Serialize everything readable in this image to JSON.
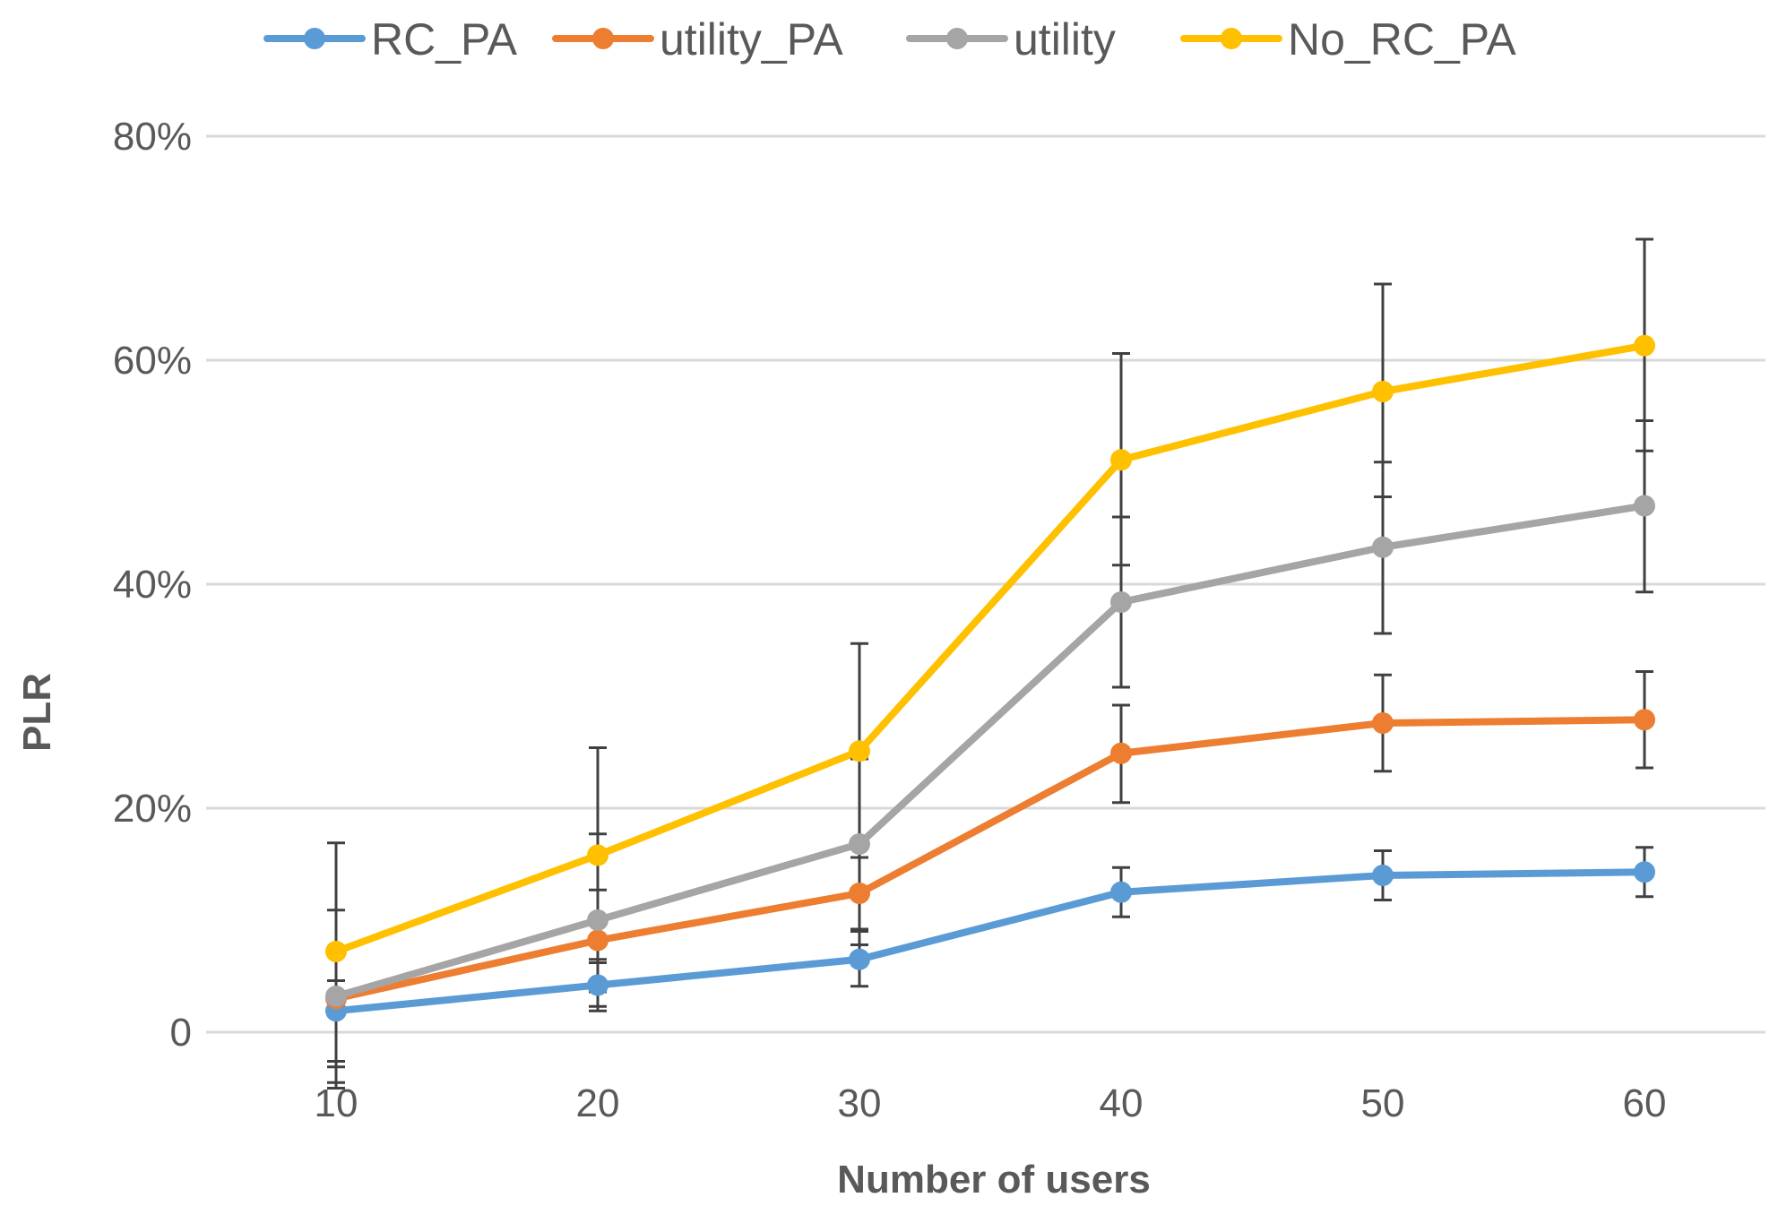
{
  "chart_data": {
    "type": "line",
    "title": "",
    "xlabel": "Number of users",
    "ylabel": "PLR",
    "x": [
      10,
      20,
      30,
      40,
      50,
      60
    ],
    "x_tick_labels": [
      "10",
      "20",
      "30",
      "40",
      "50",
      "60"
    ],
    "ylim": [
      0,
      0.8
    ],
    "y_ticks": [
      0,
      0.2,
      0.4,
      0.6,
      0.8
    ],
    "y_tick_labels": [
      "0",
      "20%",
      "40%",
      "60%",
      "80%"
    ],
    "grid": true,
    "legend_position": "top",
    "series": [
      {
        "name": "RC_PA",
        "color": "#5B9BD5",
        "values": [
          0.019,
          0.042,
          0.065,
          0.125,
          0.14,
          0.143
        ],
        "err_low": [
          0.069,
          0.023,
          0.024,
          0.022,
          0.022,
          0.022
        ],
        "err_high": [
          0.027,
          0.023,
          0.025,
          0.022,
          0.022,
          0.022
        ]
      },
      {
        "name": "utility_PA",
        "color": "#ED7D31",
        "values": [
          0.03,
          0.082,
          0.124,
          0.249,
          0.276,
          0.279
        ],
        "err_low": [
          0.061,
          0.046,
          0.046,
          0.044,
          0.043,
          0.043
        ],
        "err_high": [
          0.046,
          0.045,
          0.045,
          0.043,
          0.043,
          0.043
        ]
      },
      {
        "name": "utility",
        "color": "#A5A5A5",
        "values": [
          0.032,
          0.1,
          0.168,
          0.384,
          0.433,
          0.47
        ],
        "err_low": [
          0.077,
          0.077,
          0.076,
          0.076,
          0.077,
          0.077
        ],
        "err_high": [
          0.077,
          0.077,
          0.076,
          0.076,
          0.076,
          0.076
        ]
      },
      {
        "name": "No_RC_PA",
        "color": "#FFC000",
        "values": [
          0.072,
          0.158,
          0.251,
          0.511,
          0.572,
          0.613
        ],
        "err_low": [
          0.098,
          0.096,
          0.095,
          0.094,
          0.094,
          0.094
        ],
        "err_high": [
          0.097,
          0.096,
          0.096,
          0.095,
          0.096,
          0.095
        ]
      }
    ],
    "error_bar_color": "#404040"
  }
}
